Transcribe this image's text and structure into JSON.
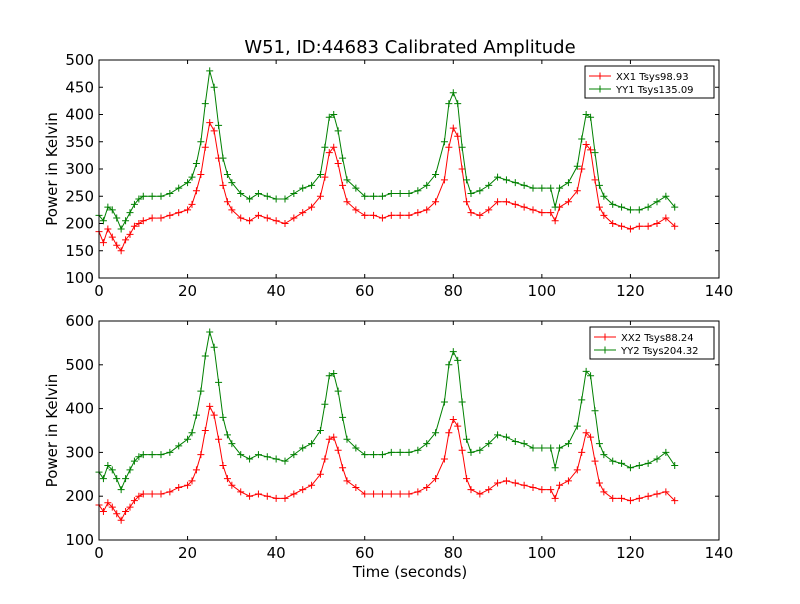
{
  "figure": {
    "title": "W51, ID:44683 Calibrated Amplitude",
    "xlabel": "Time (seconds)"
  },
  "chart_data": [
    {
      "type": "line",
      "title": "W51, ID:44683 Calibrated Amplitude",
      "xlabel": "",
      "ylabel": "Power in Kelvin",
      "xlim": [
        0,
        140
      ],
      "ylim": [
        100,
        500
      ],
      "xticks": [
        0,
        20,
        40,
        60,
        80,
        100,
        120,
        140
      ],
      "yticks": [
        100,
        150,
        200,
        250,
        300,
        350,
        400,
        450,
        500
      ],
      "grid": false,
      "legend": "top-right",
      "marker": "+",
      "x": [
        0,
        1,
        2,
        3,
        4,
        5,
        6,
        7,
        8,
        9,
        10,
        12,
        14,
        16,
        18,
        20,
        21,
        22,
        23,
        24,
        25,
        26,
        27,
        28,
        29,
        30,
        32,
        34,
        36,
        38,
        40,
        42,
        44,
        46,
        48,
        50,
        51,
        52,
        53,
        54,
        55,
        56,
        58,
        60,
        62,
        64,
        66,
        68,
        70,
        72,
        74,
        76,
        78,
        79,
        80,
        81,
        82,
        83,
        84,
        86,
        88,
        90,
        92,
        94,
        96,
        98,
        100,
        102,
        103,
        104,
        106,
        108,
        109,
        110,
        111,
        112,
        113,
        114,
        116,
        118,
        120,
        122,
        124,
        126,
        128,
        130
      ],
      "series": [
        {
          "name": "XX1 Tsys98.93",
          "color": "#ff0000",
          "values": [
            185,
            165,
            190,
            175,
            160,
            150,
            170,
            180,
            195,
            200,
            205,
            210,
            210,
            215,
            220,
            225,
            235,
            260,
            290,
            340,
            385,
            370,
            320,
            270,
            240,
            225,
            210,
            205,
            215,
            210,
            205,
            200,
            210,
            220,
            230,
            250,
            285,
            330,
            340,
            310,
            270,
            240,
            225,
            215,
            215,
            210,
            215,
            215,
            215,
            220,
            225,
            240,
            280,
            340,
            375,
            360,
            300,
            240,
            220,
            215,
            225,
            240,
            240,
            235,
            230,
            225,
            220,
            220,
            205,
            230,
            240,
            260,
            300,
            345,
            335,
            280,
            230,
            215,
            200,
            195,
            190,
            195,
            195,
            200,
            210,
            195
          ]
        },
        {
          "name": "YY1 Tsys135.09",
          "color": "#008000",
          "values": [
            215,
            205,
            230,
            225,
            210,
            190,
            205,
            220,
            235,
            245,
            250,
            250,
            250,
            255,
            265,
            275,
            285,
            310,
            350,
            420,
            480,
            450,
            380,
            320,
            290,
            275,
            255,
            245,
            255,
            250,
            245,
            245,
            255,
            265,
            270,
            290,
            340,
            395,
            400,
            370,
            320,
            280,
            265,
            250,
            250,
            250,
            255,
            255,
            255,
            260,
            270,
            290,
            350,
            420,
            440,
            420,
            340,
            280,
            255,
            260,
            270,
            285,
            280,
            275,
            270,
            265,
            265,
            265,
            230,
            265,
            275,
            305,
            355,
            400,
            395,
            330,
            270,
            250,
            235,
            230,
            225,
            225,
            230,
            240,
            250,
            230
          ]
        }
      ]
    },
    {
      "type": "line",
      "title": "",
      "xlabel": "Time (seconds)",
      "ylabel": "Power in Kelvin",
      "xlim": [
        0,
        140
      ],
      "ylim": [
        100,
        600
      ],
      "xticks": [
        0,
        20,
        40,
        60,
        80,
        100,
        120,
        140
      ],
      "yticks": [
        100,
        200,
        300,
        400,
        500,
        600
      ],
      "grid": false,
      "legend": "top-right",
      "marker": "+",
      "x": [
        0,
        1,
        2,
        3,
        4,
        5,
        6,
        7,
        8,
        9,
        10,
        12,
        14,
        16,
        18,
        20,
        21,
        22,
        23,
        24,
        25,
        26,
        27,
        28,
        29,
        30,
        32,
        34,
        36,
        38,
        40,
        42,
        44,
        46,
        48,
        50,
        51,
        52,
        53,
        54,
        55,
        56,
        58,
        60,
        62,
        64,
        66,
        68,
        70,
        72,
        74,
        76,
        78,
        79,
        80,
        81,
        82,
        83,
        84,
        86,
        88,
        90,
        92,
        94,
        96,
        98,
        100,
        102,
        103,
        104,
        106,
        108,
        109,
        110,
        111,
        112,
        113,
        114,
        116,
        118,
        120,
        122,
        124,
        126,
        128,
        130
      ],
      "series": [
        {
          "name": "XX2 Tsys88.24",
          "color": "#ff0000",
          "values": [
            180,
            165,
            185,
            175,
            160,
            145,
            165,
            175,
            190,
            200,
            205,
            205,
            205,
            210,
            220,
            225,
            235,
            260,
            295,
            350,
            405,
            385,
            330,
            270,
            240,
            225,
            210,
            200,
            205,
            200,
            195,
            195,
            205,
            215,
            225,
            250,
            285,
            330,
            335,
            305,
            265,
            235,
            220,
            205,
            205,
            205,
            205,
            205,
            205,
            210,
            220,
            240,
            285,
            345,
            375,
            360,
            305,
            240,
            215,
            205,
            215,
            230,
            235,
            230,
            225,
            220,
            215,
            215,
            195,
            225,
            235,
            260,
            300,
            345,
            335,
            280,
            230,
            210,
            195,
            195,
            190,
            195,
            200,
            205,
            210,
            190
          ]
        },
        {
          "name": "YY2 Tsys204.32",
          "color": "#008000",
          "values": [
            255,
            240,
            270,
            260,
            240,
            215,
            240,
            260,
            280,
            290,
            295,
            295,
            295,
            300,
            315,
            330,
            345,
            385,
            440,
            520,
            575,
            540,
            460,
            380,
            340,
            320,
            295,
            285,
            295,
            290,
            285,
            280,
            295,
            310,
            320,
            350,
            410,
            475,
            480,
            440,
            380,
            330,
            310,
            295,
            295,
            295,
            300,
            300,
            300,
            305,
            320,
            345,
            415,
            500,
            530,
            510,
            415,
            330,
            300,
            305,
            320,
            340,
            335,
            325,
            320,
            310,
            310,
            310,
            265,
            310,
            320,
            360,
            420,
            485,
            475,
            395,
            320,
            295,
            280,
            275,
            265,
            270,
            275,
            285,
            300,
            270
          ]
        }
      ]
    }
  ]
}
